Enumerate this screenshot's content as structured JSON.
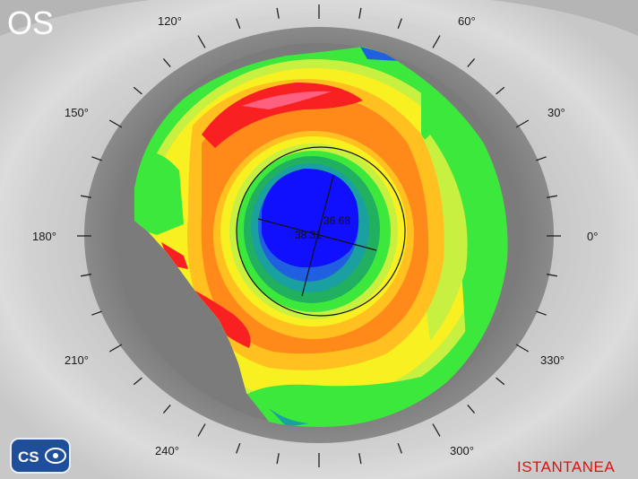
{
  "eye": "OS",
  "mode": "ISTANTANEA",
  "logo": {
    "text": "CS"
  },
  "angles": [
    "0°",
    "30°",
    "60°",
    "120°",
    "150°",
    "180°",
    "210°",
    "240°",
    "300°",
    "330°"
  ],
  "readings": {
    "k1": "36.68",
    "k2": "38.31"
  },
  "colors": {
    "blue_dark": "#1010ff",
    "blue": "#2060e0",
    "teal": "#1aa0a0",
    "green_dark": "#20b060",
    "green": "#3ce83c",
    "yellow_green": "#c8f040",
    "yellow": "#f8f020",
    "orange_light": "#ffc020",
    "orange": "#ff8a1a",
    "red": "#f82020",
    "pink": "#ff6080"
  }
}
